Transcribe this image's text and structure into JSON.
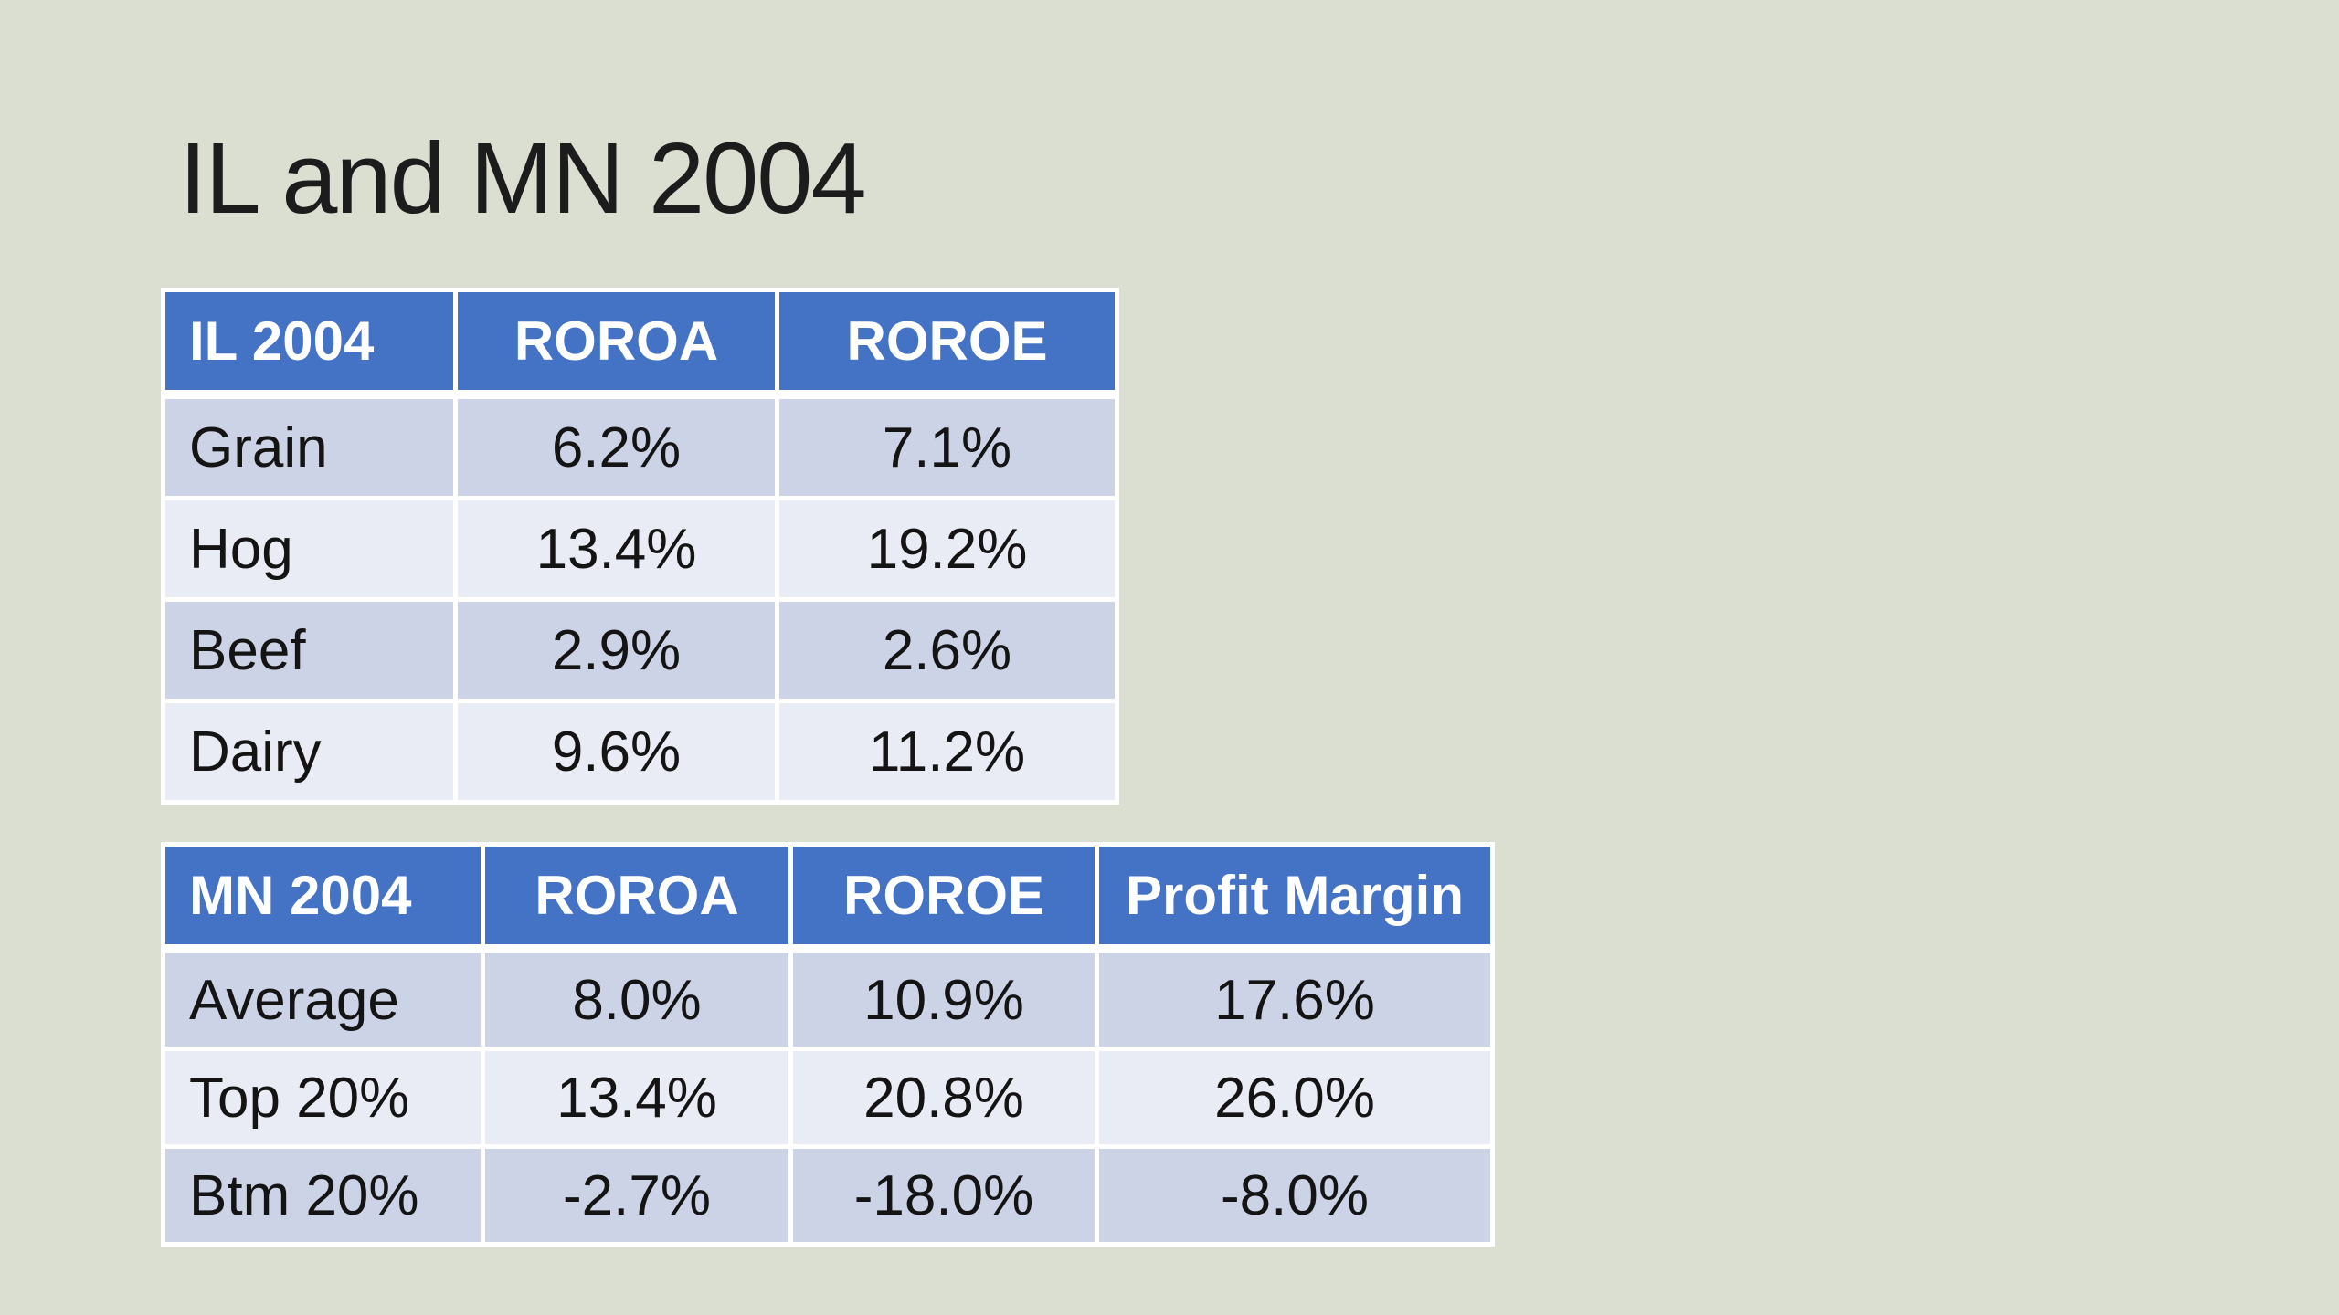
{
  "slide": {
    "title": "IL and MN 2004",
    "background_color": "#dbdfd1"
  },
  "colors": {
    "header_bg": "#4472c4",
    "header_text": "#ffffff",
    "band_dark": "#cdd3e7",
    "band_light": "#e9ebf5",
    "cell_text": "#141414",
    "title_text": "#1c1c1c",
    "divider": "#ffffff"
  },
  "tables": [
    {
      "name": "IL 2004",
      "headers": [
        "IL 2004",
        "ROROA",
        "ROROE"
      ],
      "rows": [
        {
          "label": "Grain",
          "values": [
            "6.2%",
            "7.1%"
          ]
        },
        {
          "label": "Hog",
          "values": [
            "13.4%",
            "19.2%"
          ]
        },
        {
          "label": "Beef",
          "values": [
            "2.9%",
            "2.6%"
          ]
        },
        {
          "label": "Dairy",
          "values": [
            "9.6%",
            "11.2%"
          ]
        }
      ]
    },
    {
      "name": "MN 2004",
      "headers": [
        "MN 2004",
        "ROROA",
        "ROROE",
        "Profit Margin"
      ],
      "rows": [
        {
          "label": "Average",
          "values": [
            "8.0%",
            "10.9%",
            "17.6%"
          ]
        },
        {
          "label": "Top 20%",
          "values": [
            "13.4%",
            "20.8%",
            "26.0%"
          ]
        },
        {
          "label": "Btm 20%",
          "values": [
            "-2.7%",
            "-18.0%",
            "-8.0%"
          ]
        }
      ]
    }
  ]
}
